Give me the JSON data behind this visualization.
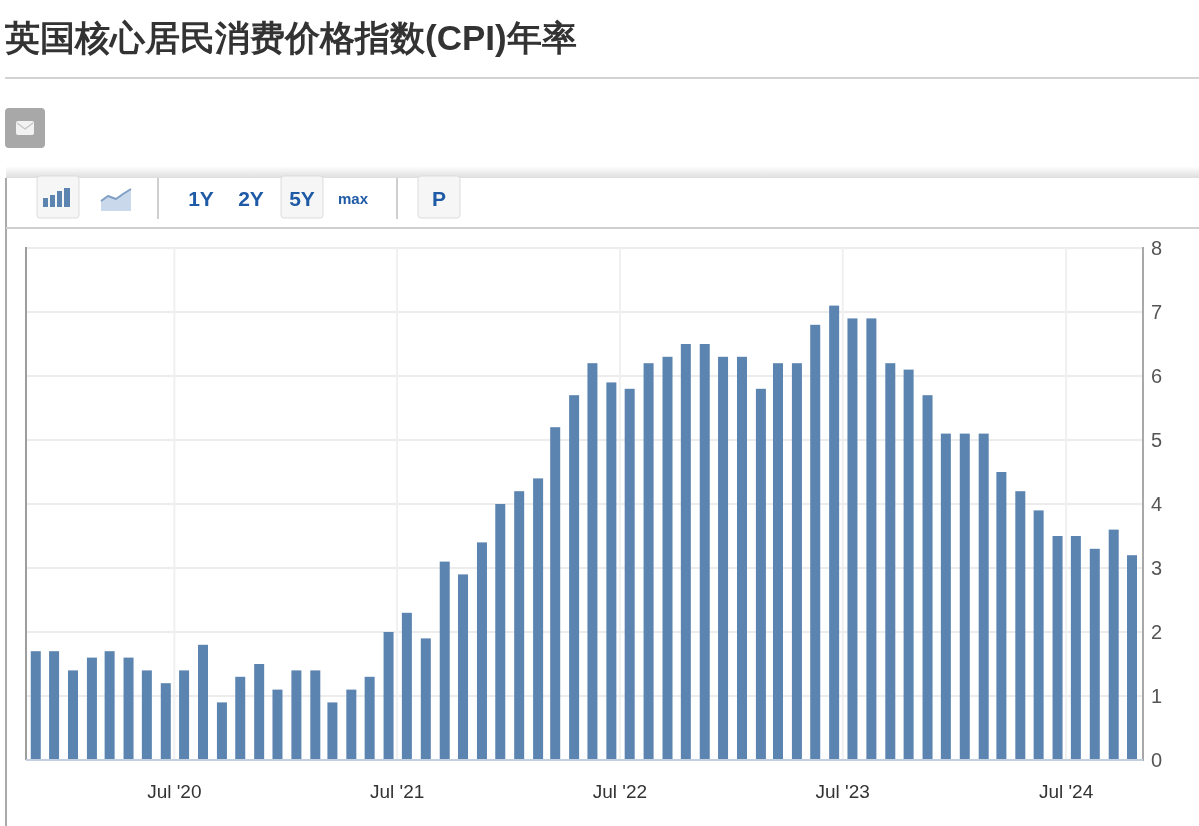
{
  "chart_data": {
    "type": "bar",
    "title": "英国核心居民消费价格指数(CPI)年率",
    "annotations": [
      "1Y",
      "2Y",
      "5Y",
      "max",
      "P"
    ],
    "x": [
      "2019-11-17",
      "2019-12-17",
      "2020-01-17",
      "2020-02-17",
      "2020-03-17",
      "2020-04-17",
      "2020-05-17",
      "2020-06-17",
      "2020-07-17",
      "2020-08-17",
      "2020-09-17",
      "2020-10-17",
      "2020-11-17",
      "2020-12-17",
      "2021-01-17",
      "2021-02-17",
      "2021-03-17",
      "2021-04-17",
      "2021-05-17",
      "2021-06-17",
      "2021-07-17",
      "2021-08-17",
      "2021-09-17",
      "2021-10-17",
      "2021-11-17",
      "2021-12-17",
      "2022-01-17",
      "2022-02-17",
      "2022-03-17",
      "2022-04-17",
      "2022-05-17",
      "2022-06-17",
      "2022-07-17",
      "2022-08-17",
      "2022-09-17",
      "2022-10-17",
      "2022-11-17",
      "2022-12-17",
      "2023-01-17",
      "2023-02-17",
      "2023-03-17",
      "2023-04-17",
      "2023-05-17",
      "2023-06-17",
      "2023-07-17",
      "2023-08-17",
      "2023-09-17",
      "2023-10-17",
      "2023-11-17",
      "2023-12-17",
      "2024-01-17",
      "2024-02-17",
      "2024-03-17",
      "2024-04-17",
      "2024-05-17",
      "2024-06-17",
      "2024-07-17",
      "2024-08-17",
      "2024-09-17",
      "2024-10-17"
    ],
    "values": [
      1.7,
      1.7,
      1.4,
      1.6,
      1.7,
      1.6,
      1.4,
      1.2,
      1.4,
      1.8,
      0.9,
      1.3,
      1.5,
      1.1,
      1.4,
      1.4,
      0.9,
      1.1,
      1.3,
      2.0,
      2.3,
      1.9,
      3.1,
      2.9,
      3.4,
      4.0,
      4.2,
      4.4,
      5.2,
      5.7,
      6.2,
      5.9,
      5.8,
      6.2,
      6.3,
      6.5,
      6.5,
      6.3,
      6.3,
      5.8,
      6.2,
      6.2,
      6.8,
      7.1,
      6.9,
      6.9,
      6.2,
      6.1,
      5.7,
      5.1,
      5.1,
      5.1,
      4.5,
      4.2,
      3.9,
      3.5,
      3.5,
      3.3,
      3.6,
      3.2
    ],
    "color": "#5b84b0",
    "xlim": [
      "2019-11-01",
      "2024-11-04"
    ],
    "xticks": [
      {
        "value": "2020-07-01",
        "label": "Jul '20"
      },
      {
        "value": "2021-07-01",
        "label": "Jul '21"
      },
      {
        "value": "2022-07-01",
        "label": "Jul '22"
      },
      {
        "value": "2023-07-01",
        "label": "Jul '23"
      },
      {
        "value": "2024-07-01",
        "label": "Jul '24"
      }
    ],
    "ylim": [
      0,
      8
    ],
    "yticks": [
      0,
      1,
      2,
      3,
      4,
      5,
      6,
      7,
      8
    ],
    "grid": true
  }
}
